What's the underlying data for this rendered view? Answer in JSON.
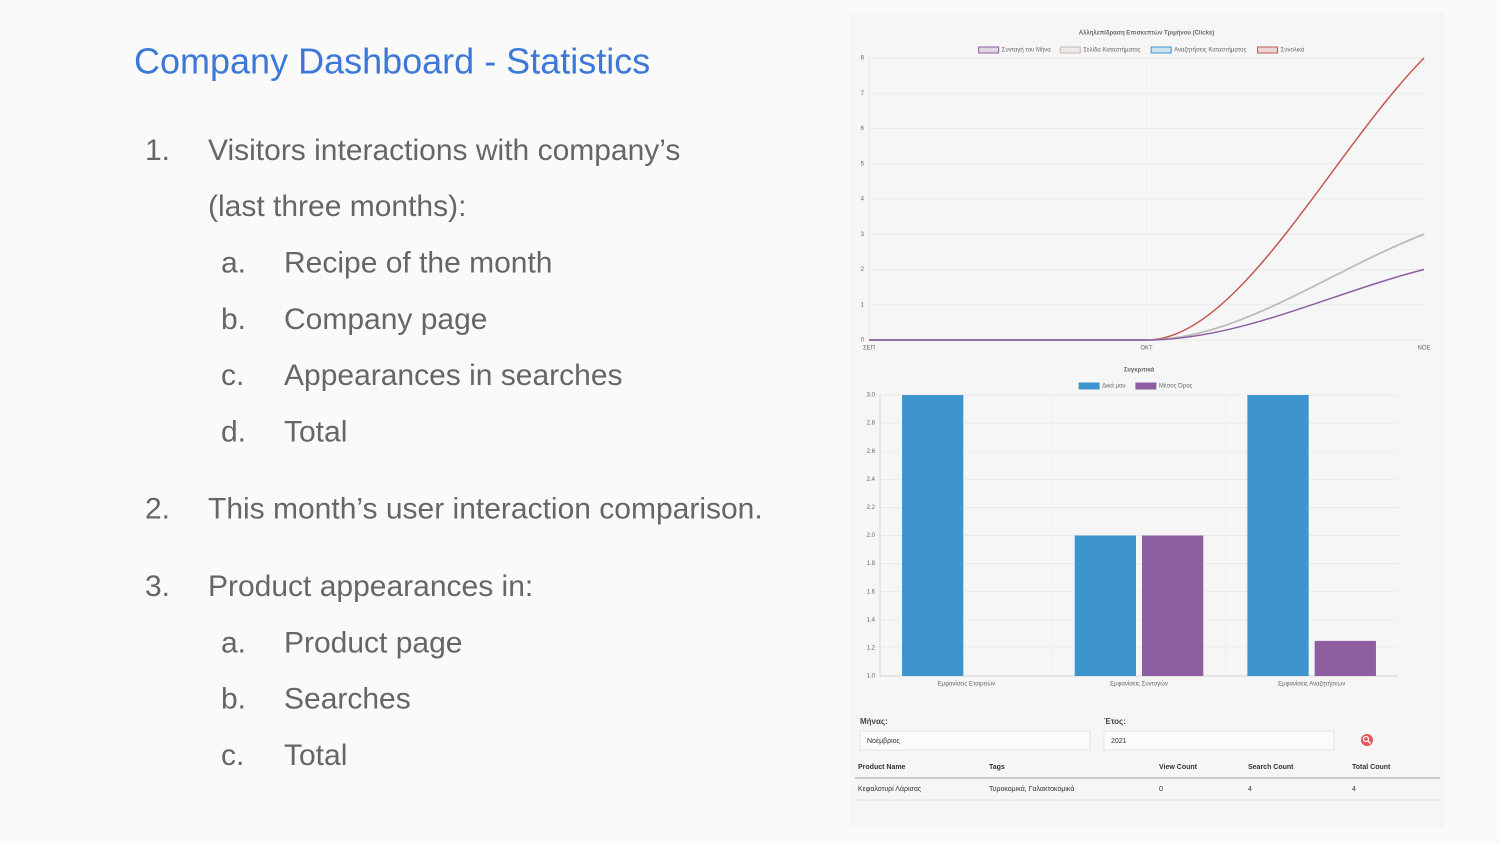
{
  "slide": {
    "title": "Company Dashboard - Statistics",
    "list": [
      {
        "marker": "1.",
        "lines": [
          "Visitors interactions with company’s",
          "(last three months):"
        ],
        "sub": [
          {
            "marker": "a.",
            "text": "Recipe of the month"
          },
          {
            "marker": "b.",
            "text": "Company page"
          },
          {
            "marker": "c.",
            "text": "Appearances in searches"
          },
          {
            "marker": "d.",
            "text": "Total"
          }
        ]
      },
      {
        "marker": "2.",
        "lines": [
          "This month’s user interaction comparison."
        ],
        "sub": []
      },
      {
        "marker": "3.",
        "lines": [
          "Product appearances in:"
        ],
        "sub": [
          {
            "marker": "a.",
            "text": "Product page"
          },
          {
            "marker": "b.",
            "text": "Searches"
          },
          {
            "marker": "c.",
            "text": "Total"
          }
        ]
      }
    ]
  },
  "chart_data": [
    {
      "type": "line",
      "title": "Αλληλεπίδραση Επισκεπτών Τριμήνου (Clicks)",
      "categories": [
        "ΣΕΠ",
        "ΟΚΤ",
        "ΝΟΕ"
      ],
      "series": [
        {
          "name": "Συνταγή του Μήνα",
          "color": "#8e5ea2",
          "values": [
            0,
            0,
            2
          ]
        },
        {
          "name": "Σελίδα Καταστήματος",
          "color": "#c9b9b2",
          "values": [
            0,
            0,
            3
          ]
        },
        {
          "name": "Αναζητήσεις Καταστήματος",
          "color": "#3e95cd",
          "values": [
            0,
            0,
            3
          ]
        },
        {
          "name": "Συνολικά",
          "color": "#c45850",
          "values": [
            0,
            0,
            8
          ]
        }
      ],
      "ylim": [
        0,
        8
      ],
      "yticks": [
        0,
        1,
        2,
        3,
        4,
        5,
        6,
        7,
        8
      ],
      "grid": true,
      "legend": "top"
    },
    {
      "type": "bar",
      "title": "Συγκριτικά",
      "categories": [
        "Εμφανίσεις Εταιρειών",
        "Εμφανίσεις Συνταγών",
        "Εμφανίσεις Αναζητήσεων"
      ],
      "series": [
        {
          "name": "Δικά μου",
          "color": "#3e95cd",
          "values": [
            3,
            2,
            3
          ]
        },
        {
          "name": "Μέσος Όρος",
          "color": "#8e5ea2",
          "values": [
            1,
            2,
            1.25
          ]
        }
      ],
      "ylim": [
        1,
        3
      ],
      "yticks": [
        {
          "value": 1,
          "label": "1.0"
        },
        {
          "value": 1.2,
          "label": "1.2"
        },
        {
          "value": 1.4,
          "label": "1.4"
        },
        {
          "value": 1.6,
          "label": "1.6"
        },
        {
          "value": 1.8,
          "label": "1.8"
        },
        {
          "value": 2,
          "label": "2.0"
        },
        {
          "value": 2.2,
          "label": "2.2"
        },
        {
          "value": 2.4,
          "label": "2.4"
        },
        {
          "value": 2.6,
          "label": "2.6"
        },
        {
          "value": 2.8,
          "label": "2.8"
        },
        {
          "value": 3,
          "label": "3.0"
        }
      ],
      "grid": true,
      "legend": "top"
    }
  ],
  "form": {
    "month_label": "Μήνας:",
    "month_value": "Νοέμβριος",
    "year_label": "Έτος:",
    "year_value": "2021"
  },
  "table": {
    "columns": [
      "Product Name",
      "Tags",
      "View Count",
      "Search Count",
      "Total Count"
    ],
    "rows": [
      [
        "Κεφαλοτυρί Λάρισας",
        "Τυροκομικά, Γαλακτοκομικά",
        0,
        4,
        4
      ]
    ]
  }
}
